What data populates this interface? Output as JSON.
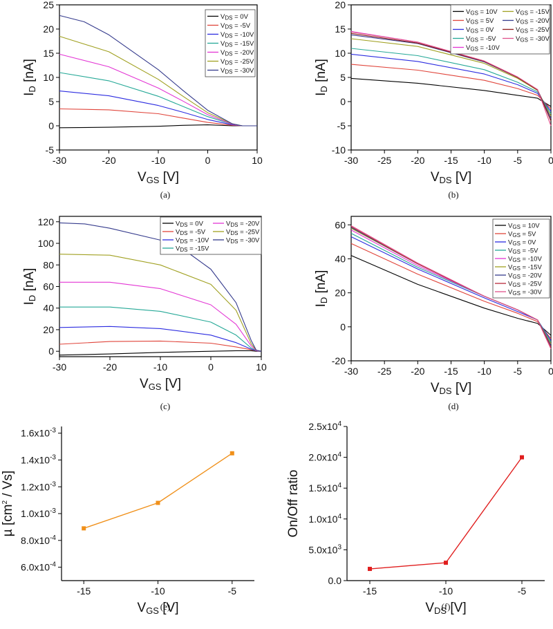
{
  "chart_data": [
    {
      "panel": "a",
      "type": "line",
      "caption": "(a)",
      "xlabel": {
        "main": "V",
        "sub": "GS",
        "unit": " [V]"
      },
      "ylabel": {
        "main": "I",
        "sub": "D",
        "unit": " [nA]"
      },
      "xlim": [
        -30,
        10
      ],
      "ylim": [
        -5,
        25
      ],
      "xticks": [
        -30,
        -20,
        -10,
        0,
        10
      ],
      "yticks": [
        -5,
        0,
        5,
        10,
        15,
        20,
        25
      ],
      "legend": {
        "prefix": "V",
        "sub": "DS",
        "position": "top-right",
        "columns": 1
      },
      "series": [
        {
          "name": "=  0V",
          "color": "#000000",
          "x": [
            -30,
            -20,
            -10,
            -5,
            0,
            5,
            7,
            10
          ],
          "y": [
            -0.4,
            -0.3,
            -0.1,
            0.1,
            0.2,
            0.0,
            0.0,
            0.0
          ]
        },
        {
          "name": "= -5V",
          "color": "#e0443a",
          "x": [
            -30,
            -20,
            -10,
            -5,
            0,
            5,
            7,
            10
          ],
          "y": [
            3.5,
            3.3,
            2.5,
            1.6,
            0.7,
            0.1,
            0.0,
            0.0
          ]
        },
        {
          "name": "= -10V",
          "color": "#2b2be0",
          "x": [
            -30,
            -20,
            -10,
            -5,
            0,
            5,
            7,
            10
          ],
          "y": [
            7.2,
            6.2,
            4.2,
            2.8,
            1.3,
            0.2,
            0.0,
            0.0
          ]
        },
        {
          "name": "= -15V",
          "color": "#24a896",
          "x": [
            -30,
            -20,
            -10,
            -5,
            0,
            5,
            7,
            10
          ],
          "y": [
            11,
            9.3,
            6.1,
            4.0,
            1.9,
            0.3,
            0.0,
            0.0
          ]
        },
        {
          "name": "= -20V",
          "color": "#e335d4",
          "x": [
            -30,
            -20,
            -10,
            -5,
            0,
            5,
            7,
            10
          ],
          "y": [
            14.8,
            12.2,
            7.8,
            5.1,
            2.3,
            0.3,
            0.0,
            0.0
          ]
        },
        {
          "name": "= -25V",
          "color": "#a0a020",
          "x": [
            -30,
            -20,
            -10,
            -5,
            0,
            5,
            7,
            10
          ],
          "y": [
            18.5,
            15.3,
            9.6,
            6.1,
            2.7,
            0.4,
            0.0,
            0.0
          ]
        },
        {
          "name": "= -30V",
          "color": "#343a8c",
          "x": [
            -30,
            -25,
            -20,
            -10,
            -5,
            0,
            5,
            7,
            10
          ],
          "y": [
            22.8,
            21.5,
            18.8,
            11.6,
            7.3,
            3.2,
            0.4,
            0.0,
            0.0
          ]
        }
      ]
    },
    {
      "panel": "b",
      "type": "line",
      "caption": "(b)",
      "xlabel": {
        "main": "V",
        "sub": "DS",
        "unit": " [V]"
      },
      "ylabel": {
        "main": "I",
        "sub": "D",
        "unit": " [nA]"
      },
      "xlim": [
        -30,
        0
      ],
      "ylim": [
        -10,
        20
      ],
      "xticks": [
        -30,
        -25,
        -20,
        -15,
        -10,
        -5,
        0
      ],
      "yticks": [
        -10,
        -5,
        0,
        5,
        10,
        15,
        20
      ],
      "legend": {
        "prefix": "V",
        "sub": "GS",
        "position": "top-right",
        "columns": 2
      },
      "series": [
        {
          "name": "=  10V",
          "color": "#000000",
          "x": [
            -30,
            -20,
            -10,
            -5,
            -2,
            0
          ],
          "y": [
            4.8,
            3.8,
            2.3,
            1.3,
            0.7,
            -1.0
          ]
        },
        {
          "name": "=  5V",
          "color": "#e0443a",
          "x": [
            -30,
            -20,
            -10,
            -5,
            -2,
            0
          ],
          "y": [
            7.7,
            6.5,
            4.4,
            2.7,
            1.3,
            -1.5
          ]
        },
        {
          "name": "=  0V",
          "color": "#2b2be0",
          "x": [
            -30,
            -20,
            -10,
            -5,
            -2,
            0
          ],
          "y": [
            9.8,
            8.3,
            5.7,
            3.5,
            1.7,
            -2.0
          ]
        },
        {
          "name": "= -5V",
          "color": "#24a896",
          "x": [
            -30,
            -20,
            -10,
            -5,
            -2,
            0
          ],
          "y": [
            11.0,
            9.5,
            6.6,
            4.0,
            2.0,
            -2.5
          ]
        },
        {
          "name": "= -10V",
          "color": "#e335d4",
          "x": [
            -30,
            -20,
            -10,
            -5,
            -2,
            0
          ],
          "y": [
            14.5,
            12.3,
            8.3,
            5.0,
            2.4,
            -3.5
          ]
        },
        {
          "name": "= -15V",
          "color": "#a0a020",
          "x": [
            -30,
            -20,
            -10,
            -5,
            -2,
            0
          ],
          "y": [
            13.0,
            11.4,
            7.9,
            4.8,
            2.3,
            -3.0
          ]
        },
        {
          "name": "= -20V",
          "color": "#343a8c",
          "x": [
            -30,
            -20,
            -10,
            -5,
            -2,
            0
          ],
          "y": [
            13.8,
            12.0,
            8.2,
            5.0,
            2.4,
            -3.5
          ]
        },
        {
          "name": "= -25V",
          "color": "#8b1a1a",
          "x": [
            -30,
            -20,
            -10,
            -5,
            -2,
            0
          ],
          "y": [
            14.1,
            12.1,
            8.3,
            5.0,
            2.4,
            -4.0
          ]
        },
        {
          "name": "= -30V",
          "color": "#e0508a",
          "x": [
            -30,
            -20,
            -10,
            -5,
            -2,
            0
          ],
          "y": [
            14.4,
            12.3,
            8.4,
            5.1,
            2.5,
            -5.0
          ]
        }
      ]
    },
    {
      "panel": "c",
      "type": "line",
      "caption": "(c)",
      "xlabel": {
        "main": "V",
        "sub": "GS",
        "unit": " [V]"
      },
      "ylabel": {
        "main": "I",
        "sub": "D",
        "unit": " [nA]"
      },
      "xlim": [
        -30,
        10
      ],
      "ylim": [
        -5,
        125
      ],
      "xticks": [
        -30,
        -20,
        -10,
        0,
        10
      ],
      "yticks": [
        0,
        20,
        40,
        60,
        80,
        100,
        120
      ],
      "legend": {
        "prefix": "V",
        "sub": "DS",
        "position": "top-right",
        "columns": 2
      },
      "series": [
        {
          "name": "=  0V",
          "color": "#000000",
          "x": [
            -30,
            -20,
            -10,
            0,
            5,
            8,
            9,
            10
          ],
          "y": [
            -3.5,
            -2.5,
            -1,
            0,
            0.5,
            0.5,
            0,
            0
          ]
        },
        {
          "name": "= -5V",
          "color": "#e0443a",
          "x": [
            -30,
            -20,
            -10,
            0,
            5,
            8,
            9,
            10
          ],
          "y": [
            6.5,
            9,
            9.5,
            7.5,
            4,
            1.5,
            0.5,
            0
          ]
        },
        {
          "name": "= -10V",
          "color": "#2b2be0",
          "x": [
            -30,
            -20,
            -10,
            0,
            5,
            8,
            9,
            10
          ],
          "y": [
            22,
            23,
            21,
            15,
            8,
            2,
            0.5,
            0
          ]
        },
        {
          "name": "= -15V",
          "color": "#24a896",
          "x": [
            -30,
            -20,
            -10,
            0,
            5,
            8,
            9,
            10
          ],
          "y": [
            41,
            41,
            37,
            27,
            15,
            3,
            0.5,
            0
          ]
        },
        {
          "name": "= -20V",
          "color": "#e335d4",
          "x": [
            -30,
            -20,
            -10,
            0,
            5,
            8,
            9,
            10
          ],
          "y": [
            64,
            64,
            58,
            43,
            25,
            5,
            0.5,
            0
          ]
        },
        {
          "name": "= -25V",
          "color": "#a0a020",
          "x": [
            -30,
            -20,
            -10,
            0,
            5,
            8,
            9,
            10
          ],
          "y": [
            90,
            89,
            80,
            62,
            38,
            7,
            1,
            0
          ]
        },
        {
          "name": "= -30V",
          "color": "#343a8c",
          "x": [
            -30,
            -25,
            -20,
            -10,
            -5,
            0,
            5,
            8,
            9,
            10
          ],
          "y": [
            119,
            118,
            114,
            103,
            93,
            76,
            45,
            10,
            1,
            0
          ]
        }
      ]
    },
    {
      "panel": "d",
      "type": "line",
      "caption": "(d)",
      "xlabel": {
        "main": "V",
        "sub": "DS",
        "unit": " [V]"
      },
      "ylabel": {
        "main": "I",
        "sub": "D",
        "unit": " [nA]"
      },
      "xlim": [
        -30,
        0
      ],
      "ylim": [
        -20,
        65
      ],
      "xticks": [
        -30,
        -25,
        -20,
        -15,
        -10,
        -5,
        0
      ],
      "yticks": [
        -20,
        0,
        20,
        40,
        60
      ],
      "legend": {
        "prefix": "V",
        "sub": "GS",
        "position": "top-right",
        "columns": 1
      },
      "series": [
        {
          "name": "=  10V",
          "color": "#000000",
          "x": [
            -30,
            -20,
            -10,
            -5,
            -2,
            0
          ],
          "y": [
            42,
            25,
            11,
            5,
            2,
            -5
          ]
        },
        {
          "name": "=  5V",
          "color": "#e0443a",
          "x": [
            -30,
            -20,
            -10,
            -5,
            -2,
            0
          ],
          "y": [
            49,
            31,
            15,
            8,
            3,
            -7
          ]
        },
        {
          "name": "=  0V",
          "color": "#2b2be0",
          "x": [
            -30,
            -20,
            -10,
            -5,
            -2,
            0
          ],
          "y": [
            53,
            34,
            17,
            9,
            4,
            -8
          ]
        },
        {
          "name": "= -5V",
          "color": "#24a896",
          "x": [
            -30,
            -20,
            -10,
            -5,
            -2,
            0
          ],
          "y": [
            55,
            35,
            18,
            10,
            4,
            -9
          ]
        },
        {
          "name": "= -10V",
          "color": "#e335d4",
          "x": [
            -30,
            -20,
            -10,
            -5,
            -2,
            0
          ],
          "y": [
            57,
            36,
            18,
            10,
            4,
            -10
          ]
        },
        {
          "name": "= -15V",
          "color": "#a0a020",
          "x": [
            -30,
            -20,
            -10,
            -5,
            -2,
            0
          ],
          "y": [
            58,
            37,
            18,
            10,
            4,
            -10
          ]
        },
        {
          "name": "= -20V",
          "color": "#343a8c",
          "x": [
            -30,
            -20,
            -10,
            -5,
            -2,
            0
          ],
          "y": [
            58.5,
            37,
            18,
            10,
            4,
            -11
          ]
        },
        {
          "name": "= -25V",
          "color": "#b8283a",
          "x": [
            -30,
            -20,
            -10,
            -5,
            -2,
            0
          ],
          "y": [
            59,
            37,
            18,
            10,
            4,
            -12
          ]
        },
        {
          "name": "= -30V",
          "color": "#e0508a",
          "x": [
            -30,
            -20,
            -10,
            -5,
            -2,
            0
          ],
          "y": [
            59.5,
            37.5,
            18,
            10,
            4,
            -13
          ]
        }
      ]
    },
    {
      "panel": "e",
      "type": "scatter-line",
      "caption": "(e)",
      "xlabel": {
        "main": "V",
        "sub": "GS",
        "unit": " [V]"
      },
      "ylabel": {
        "text": "µ [cm",
        "sup": "2",
        "tail": " / Vs]"
      },
      "xlim": [
        -16.5,
        -3.5
      ],
      "ylim": [
        0.0005,
        0.00165
      ],
      "xticks": [
        -15,
        -10,
        -5
      ],
      "yticks": [
        0.0006,
        0.0008,
        0.001,
        0.0012,
        0.0014,
        0.0016
      ],
      "ytick_labels": [
        {
          "mant": "6.0x10",
          "exp": "-4"
        },
        {
          "mant": "8.0x10",
          "exp": "-4"
        },
        {
          "mant": "1.0x10",
          "exp": "-3"
        },
        {
          "mant": "1.2x10",
          "exp": "-3"
        },
        {
          "mant": "1.4x10",
          "exp": "-3"
        },
        {
          "mant": "1.6x10",
          "exp": "-3"
        }
      ],
      "series": [
        {
          "name": "mobility",
          "color": "#f0901a",
          "x": [
            -15,
            -10,
            -5
          ],
          "y": [
            0.00089,
            0.00108,
            0.00145
          ]
        }
      ]
    },
    {
      "panel": "f",
      "type": "scatter-line",
      "caption": "(f)",
      "xlabel": {
        "main": "V",
        "sub": "DS",
        "unit": " [V]"
      },
      "ylabel": {
        "text": "On/Off ratio"
      },
      "xlim": [
        -16.5,
        -3.5
      ],
      "ylim": [
        0,
        25000
      ],
      "xticks": [
        -15,
        -10,
        -5
      ],
      "yticks": [
        0,
        5000,
        10000,
        15000,
        20000,
        25000
      ],
      "ytick_labels": [
        {
          "mant": "0.0",
          "exp": ""
        },
        {
          "mant": "5.0x10",
          "exp": "3"
        },
        {
          "mant": "1.0x10",
          "exp": "4"
        },
        {
          "mant": "1.5x10",
          "exp": "4"
        },
        {
          "mant": "2.0x10",
          "exp": "4"
        },
        {
          "mant": "2.5x10",
          "exp": "4"
        }
      ],
      "series": [
        {
          "name": "on/off",
          "color": "#e01e1e",
          "x": [
            -15,
            -10,
            -5
          ],
          "y": [
            1900,
            2900,
            20000
          ]
        }
      ]
    }
  ]
}
